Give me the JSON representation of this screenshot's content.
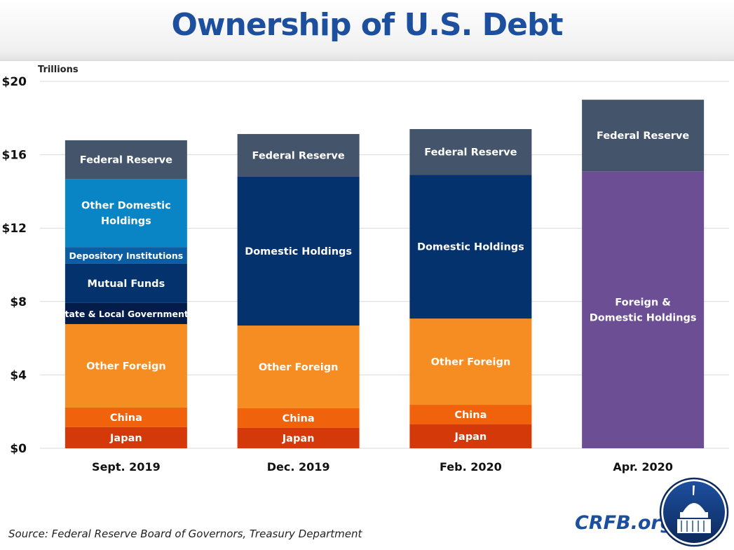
{
  "chart_data": {
    "type": "bar",
    "stacked": true,
    "title": "Ownership of U.S. Debt",
    "ylabel": "Trillions",
    "xlabel": "",
    "ylim": [
      0,
      20
    ],
    "yticks": [
      "$0",
      "$4",
      "$8",
      "$12",
      "$16",
      "$20"
    ],
    "ytick_values": [
      0,
      4,
      8,
      12,
      16,
      20
    ],
    "grid": true,
    "categories": [
      "Sept. 2019",
      "Dec. 2019",
      "Feb. 2020",
      "Apr. 2020"
    ],
    "bars": [
      {
        "category": "Sept. 2019",
        "segments": [
          {
            "label": "Japan",
            "value": 1.15,
            "color": "#d4390a"
          },
          {
            "label": "China",
            "value": 1.07,
            "color": "#f0620c"
          },
          {
            "label": "Other Foreign",
            "value": 4.55,
            "color": "#f68d22"
          },
          {
            "label": "State & Local Governments",
            "value": 1.15,
            "color": "#041c4a"
          },
          {
            "label": "Mutual Funds",
            "value": 2.14,
            "color": "#03326d"
          },
          {
            "label": "Depository Institutions",
            "value": 0.91,
            "color": "#0b5ea3"
          },
          {
            "label": "Other Domestic Holdings",
            "value": 3.71,
            "color": "#0984c4"
          },
          {
            "label": "Federal Reserve",
            "value": 2.11,
            "color": "#44546a"
          }
        ]
      },
      {
        "category": "Dec. 2019",
        "segments": [
          {
            "label": "Japan",
            "value": 1.11,
            "color": "#d4390a"
          },
          {
            "label": "China",
            "value": 1.07,
            "color": "#f0620c"
          },
          {
            "label": "Other Foreign",
            "value": 4.51,
            "color": "#f68d22"
          },
          {
            "label": "Domestic Holdings",
            "value": 8.11,
            "color": "#03326d"
          },
          {
            "label": "Federal Reserve",
            "value": 2.33,
            "color": "#44546a"
          }
        ]
      },
      {
        "category": "Feb. 2020",
        "segments": [
          {
            "label": "Japan",
            "value": 1.3,
            "color": "#d4390a"
          },
          {
            "label": "China",
            "value": 1.07,
            "color": "#f0620c"
          },
          {
            "label": "Other Foreign",
            "value": 4.7,
            "color": "#f68d22"
          },
          {
            "label": "Domestic Holdings",
            "value": 7.84,
            "color": "#03326d"
          },
          {
            "label": "Federal Reserve",
            "value": 2.49,
            "color": "#44546a"
          }
        ]
      },
      {
        "category": "Apr. 2020",
        "segments": [
          {
            "label": "Foreign & Domestic Holdings",
            "value": 15.1,
            "color": "#6c4e94"
          },
          {
            "label": "Federal Reserve",
            "value": 3.9,
            "color": "#44546a"
          }
        ]
      }
    ]
  },
  "footer": {
    "source": "Source: Federal Reserve Board of Governors, Treasury Department",
    "brand": "CRFB.org"
  }
}
